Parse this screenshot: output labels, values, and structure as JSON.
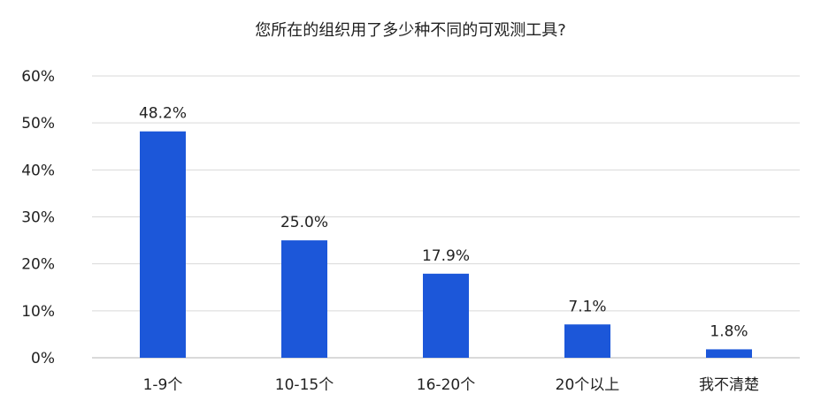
{
  "chart_data": {
    "type": "bar",
    "title": "您所在的组织用了多少种不同的可观测工具?",
    "categories": [
      "1-9个",
      "10-15个",
      "16-20个",
      "20个以上",
      "我不清楚"
    ],
    "values": [
      48.2,
      25.0,
      17.9,
      7.1,
      1.8
    ],
    "value_labels": [
      "48.2%",
      "25.0%",
      "17.9%",
      "7.1%",
      "1.8%"
    ],
    "ylim": [
      0,
      60
    ],
    "yticks": [
      0,
      10,
      20,
      30,
      40,
      50,
      60
    ],
    "ytick_labels": [
      "0%",
      "10%",
      "20%",
      "30%",
      "40%",
      "50%",
      "60%"
    ],
    "xlabel": "",
    "ylabel": "",
    "grid": true,
    "legend": "none",
    "bar_color": "#1c57d9",
    "grid_color": "#d9d9d9",
    "text_color": "#222222"
  }
}
